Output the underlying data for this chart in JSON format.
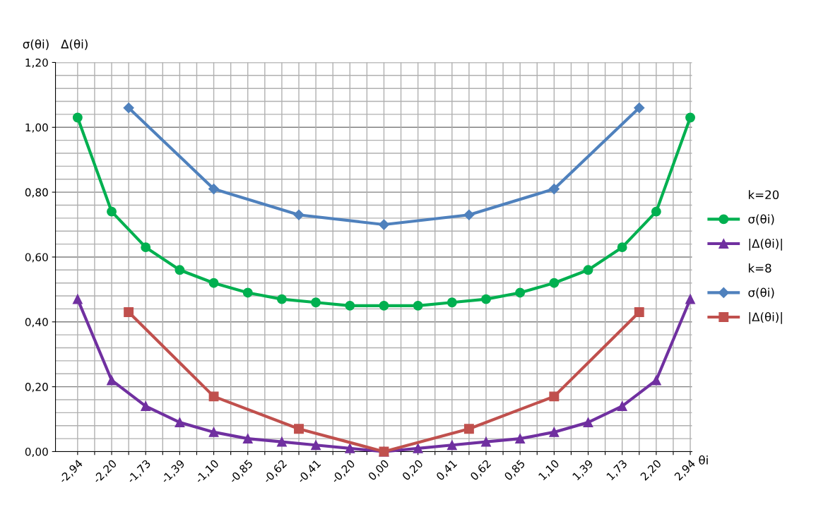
{
  "chart_data": {
    "type": "line",
    "ylabel": "σ(θi)   Δ(θi)",
    "xlabel": "θi",
    "categories": [
      "-2,94",
      null,
      "-2,20",
      null,
      "-1,73",
      null,
      "-1,39",
      null,
      "-1,10",
      null,
      "-0,85",
      null,
      "-0,62",
      null,
      "-0,41",
      null,
      "-0,20",
      null,
      "0,00",
      null,
      "0,20",
      null,
      "0,41",
      null,
      "0,62",
      null,
      "0,85",
      null,
      "1,10",
      null,
      "1,39",
      null,
      "1,73",
      null,
      "2,20",
      null,
      "2,94"
    ],
    "series": [
      {
        "name": "σ(θi)",
        "color": "#00b050",
        "marker": "circle",
        "values": [
          1.03,
          null,
          0.74,
          null,
          0.63,
          null,
          0.56,
          null,
          0.52,
          null,
          0.49,
          null,
          0.47,
          null,
          0.46,
          null,
          0.45,
          null,
          0.45,
          null,
          0.45,
          null,
          0.46,
          null,
          0.47,
          null,
          0.49,
          null,
          0.52,
          null,
          0.56,
          null,
          0.63,
          null,
          0.74,
          null,
          1.03
        ]
      },
      {
        "name": "|Δ(θi)|",
        "color": "#7030a0",
        "marker": "triangle",
        "values": [
          0.47,
          null,
          0.22,
          null,
          0.14,
          null,
          0.09,
          null,
          0.06,
          null,
          0.04,
          null,
          0.03,
          null,
          0.02,
          null,
          0.01,
          null,
          0.0,
          null,
          0.01,
          null,
          0.02,
          null,
          0.03,
          null,
          0.04,
          null,
          0.06,
          null,
          0.09,
          null,
          0.14,
          null,
          0.22,
          null,
          0.47
        ]
      },
      {
        "name": "σ(θi)",
        "color": "#4f81bd",
        "marker": "diamond",
        "values": [
          null,
          null,
          null,
          1.06,
          null,
          null,
          null,
          null,
          0.81,
          null,
          null,
          null,
          null,
          0.73,
          null,
          null,
          null,
          null,
          0.7,
          null,
          null,
          null,
          null,
          0.73,
          null,
          null,
          null,
          null,
          0.81,
          null,
          null,
          null,
          null,
          1.06,
          null,
          null,
          null
        ]
      },
      {
        "name": "|Δ(θi)|",
        "color": "#c0504d",
        "marker": "square",
        "values": [
          null,
          null,
          null,
          0.43,
          null,
          null,
          null,
          null,
          0.17,
          null,
          null,
          null,
          null,
          0.07,
          null,
          null,
          null,
          null,
          0.0,
          null,
          null,
          null,
          null,
          0.07,
          null,
          null,
          null,
          null,
          0.17,
          null,
          null,
          null,
          null,
          0.43,
          null,
          null,
          null
        ]
      }
    ],
    "annotations": [
      "k=20",
      "k=8"
    ],
    "ylim": [
      0,
      1.2
    ],
    "yticks": [
      {
        "value": 0,
        "label": "0,00"
      },
      {
        "value": 0.2,
        "label": "0,20"
      },
      {
        "value": 0.4,
        "label": "0,40"
      },
      {
        "value": 0.6,
        "label": "0,60"
      },
      {
        "value": 0.8,
        "label": "0,80"
      },
      {
        "value": 1.0,
        "label": "1,00"
      },
      {
        "value": 1.2,
        "label": "1,20"
      }
    ],
    "grid": true,
    "legend": "right",
    "line_style": "solid"
  }
}
